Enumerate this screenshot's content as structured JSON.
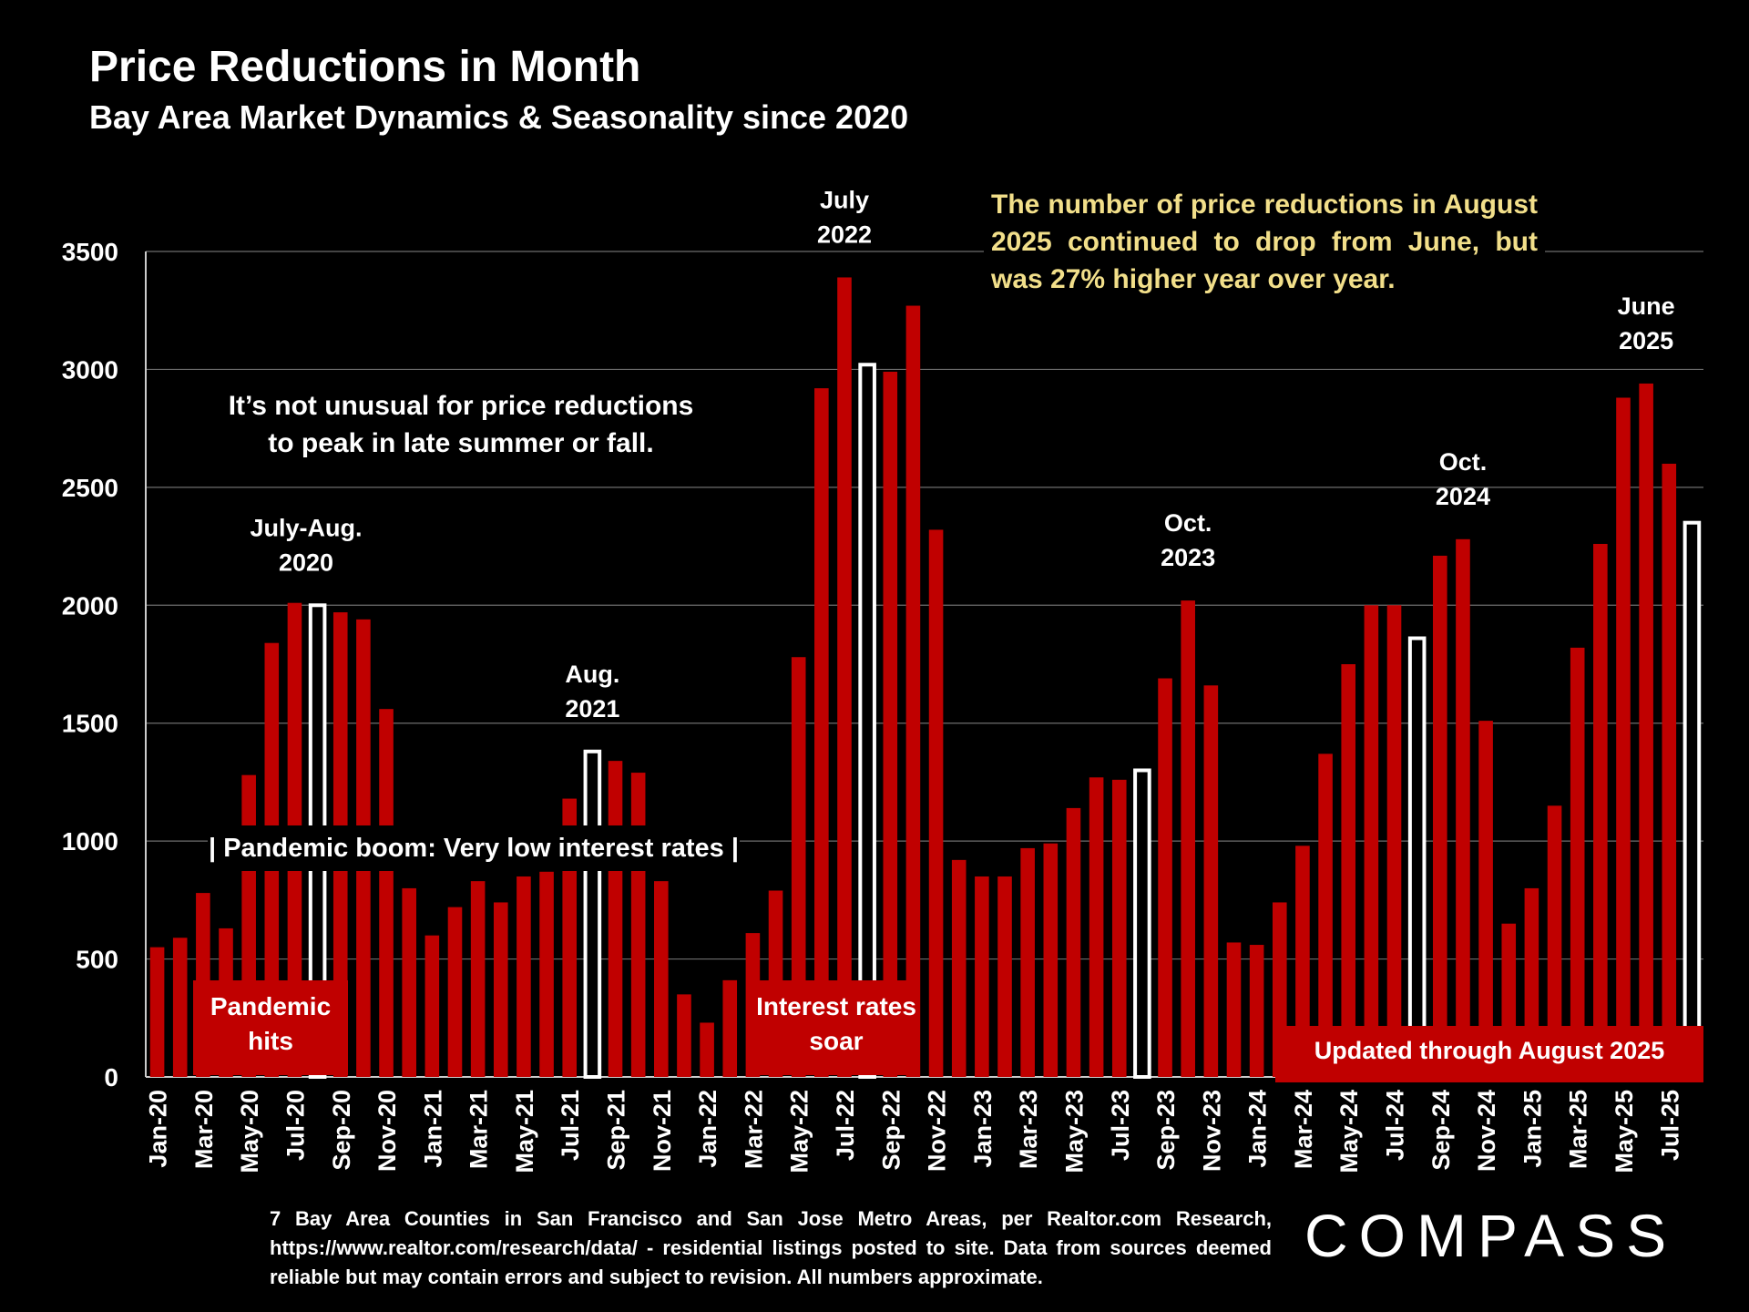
{
  "title": "Price Reductions in Month",
  "subtitle": "Bay Area Market Dynamics & Seasonality since 2020",
  "callout": "The number of price reductions in August 2025 continued to drop from June, but was 27% higher year over year.",
  "note_seasonal": "It’s not unusual for price reductions to peak in late summer or fall.",
  "note_boom": "| Pandemic boom: Very low interest rates |",
  "labels": {
    "pandemic": "Pandemic hits",
    "rates": "Interest rates soar",
    "updated": "Updated through August 2025"
  },
  "peak_labels": [
    {
      "text": [
        "July-Aug.",
        "2020"
      ],
      "index": 7
    },
    {
      "text": [
        "Aug.",
        "2021"
      ],
      "index": 19
    },
    {
      "text": [
        "July",
        "2022"
      ],
      "index": 30
    },
    {
      "text": [
        "Oct.",
        "2023"
      ],
      "index": 45
    },
    {
      "text": [
        "Oct.",
        "2024"
      ],
      "index": 57
    },
    {
      "text": [
        "June",
        "2025"
      ],
      "index": 65
    }
  ],
  "footnote": "7 Bay Area Counties in San Francisco and San Jose Metro Areas, per Realtor.com Research, https://www.realtor.com/research/data/ - residential listings posted to site.  Data from sources deemed reliable but may contain errors and subject to revision. All numbers approximate.",
  "logo": "COMPASS",
  "colors": {
    "bar": "#c00000",
    "highlight": "#ffffff",
    "callout_text": "#f2df8a",
    "background": "#000000"
  },
  "chart_data": {
    "type": "bar",
    "categories": [
      "Jan-20",
      "Feb-20",
      "Mar-20",
      "Apr-20",
      "May-20",
      "Jun-20",
      "Jul-20",
      "Aug-20",
      "Sep-20",
      "Oct-20",
      "Nov-20",
      "Dec-20",
      "Jan-21",
      "Feb-21",
      "Mar-21",
      "Apr-21",
      "May-21",
      "Jun-21",
      "Jul-21",
      "Aug-21",
      "Sep-21",
      "Oct-21",
      "Nov-21",
      "Dec-21",
      "Jan-22",
      "Feb-22",
      "Mar-22",
      "Apr-22",
      "May-22",
      "Jun-22",
      "Jul-22",
      "Aug-22",
      "Sep-22",
      "Oct-22",
      "Nov-22",
      "Dec-22",
      "Jan-23",
      "Feb-23",
      "Mar-23",
      "Apr-23",
      "May-23",
      "Jun-23",
      "Jul-23",
      "Aug-23",
      "Sep-23",
      "Oct-23",
      "Nov-23",
      "Dec-23",
      "Jan-24",
      "Feb-24",
      "Mar-24",
      "Apr-24",
      "May-24",
      "Jun-24",
      "Jul-24",
      "Aug-24",
      "Sep-24",
      "Oct-24",
      "Nov-24",
      "Dec-24",
      "Jan-25",
      "Feb-25",
      "Mar-25",
      "Apr-25",
      "May-25",
      "Jun-25",
      "Jul-25",
      "Aug-25"
    ],
    "tick_labels": [
      "Jan-20",
      "Mar-20",
      "May-20",
      "Jul-20",
      "Sep-20",
      "Nov-20",
      "Jan-21",
      "Mar-21",
      "May-21",
      "Jul-21",
      "Sep-21",
      "Nov-21",
      "Jan-22",
      "Mar-22",
      "May-22",
      "Jul-22",
      "Sep-22",
      "Nov-22",
      "Jan-23",
      "Mar-23",
      "May-23",
      "Jul-23",
      "Sep-23",
      "Nov-23",
      "Jan-24",
      "Mar-24",
      "May-24",
      "Jul-24",
      "Sep-24",
      "Nov-24",
      "Jan-25",
      "Mar-25",
      "May-25",
      "Jul-25"
    ],
    "values": [
      550,
      590,
      780,
      630,
      1280,
      1840,
      2010,
      2000,
      1970,
      1940,
      1560,
      800,
      600,
      720,
      830,
      740,
      850,
      870,
      1180,
      1380,
      1340,
      1290,
      830,
      350,
      230,
      410,
      610,
      790,
      1780,
      2920,
      3390,
      3020,
      2990,
      3270,
      2320,
      920,
      850,
      850,
      970,
      990,
      1140,
      1270,
      1260,
      1300,
      1690,
      2020,
      1660,
      570,
      560,
      740,
      980,
      1370,
      1750,
      2000,
      2000,
      1860,
      2210,
      2280,
      1510,
      650,
      800,
      1150,
      1820,
      2260,
      2880,
      2940,
      2600,
      2350
    ],
    "highlighted": [
      "Aug-20",
      "Aug-21",
      "Aug-22",
      "Aug-23",
      "Aug-24",
      "Aug-25"
    ],
    "yticks": [
      0,
      500,
      1000,
      1500,
      2000,
      2500,
      3000,
      3500
    ],
    "ylim": [
      0,
      3500
    ],
    "grid": true
  }
}
